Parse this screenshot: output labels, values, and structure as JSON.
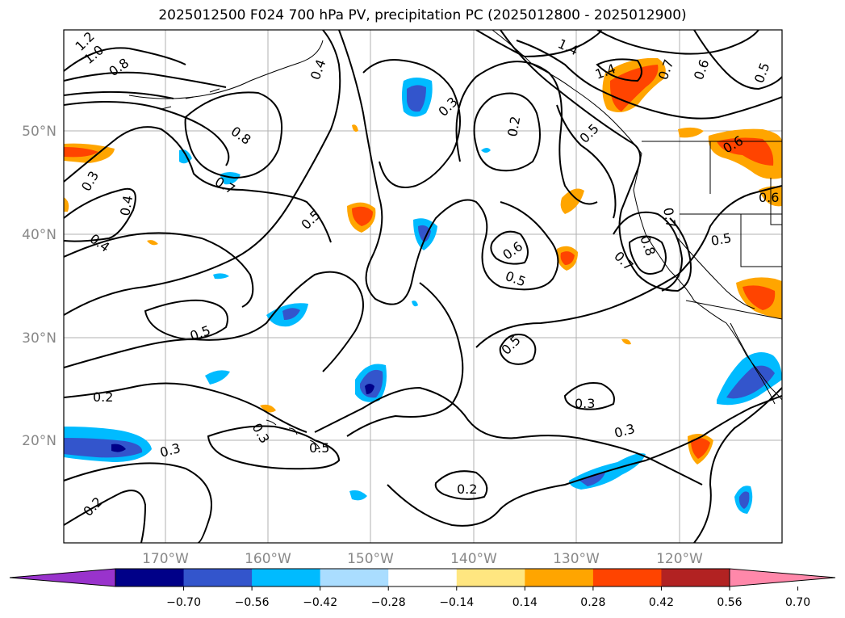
{
  "title": "2025012500 F024 700 hPa PV, precipitation PC (2025012800 - 2025012900)",
  "map": {
    "lat_labels": [
      "50°N",
      "40°N",
      "30°N",
      "20°N"
    ],
    "lon_labels": [
      "170°W",
      "160°W",
      "150°W",
      "140°W",
      "130°W",
      "120°W"
    ],
    "pv_contour_labels": [
      "1.2",
      "1.0",
      "0.8",
      "0.3",
      "0.4",
      "0.4",
      "0.8",
      "0.7",
      "0.5",
      "0.5",
      "0.5",
      "0.3",
      "0.2",
      "0.6",
      "0.5",
      "0.5",
      "0.3",
      "0.3",
      "0.2",
      "0.2",
      "0.3",
      "0.3",
      "0.2",
      "1.4",
      "1.4",
      "0.7",
      "0.6",
      "0.8",
      "0.7",
      "0.5",
      "0.6",
      "0.7",
      "0.4",
      "0.5",
      "0.5",
      "0.6"
    ]
  },
  "colorbar": {
    "tick_labels": [
      "−0.70",
      "−0.56",
      "−0.42",
      "−0.28",
      "−0.14",
      "0.14",
      "0.28",
      "0.42",
      "0.56",
      "0.70"
    ],
    "colors": [
      "#9933cc",
      "#000088",
      "#3355cc",
      "#00bbff",
      "#aaddff",
      "#ffffff",
      "#ffe680",
      "#ffa500",
      "#ff4400",
      "#b22222",
      "#ff88aa"
    ]
  }
}
